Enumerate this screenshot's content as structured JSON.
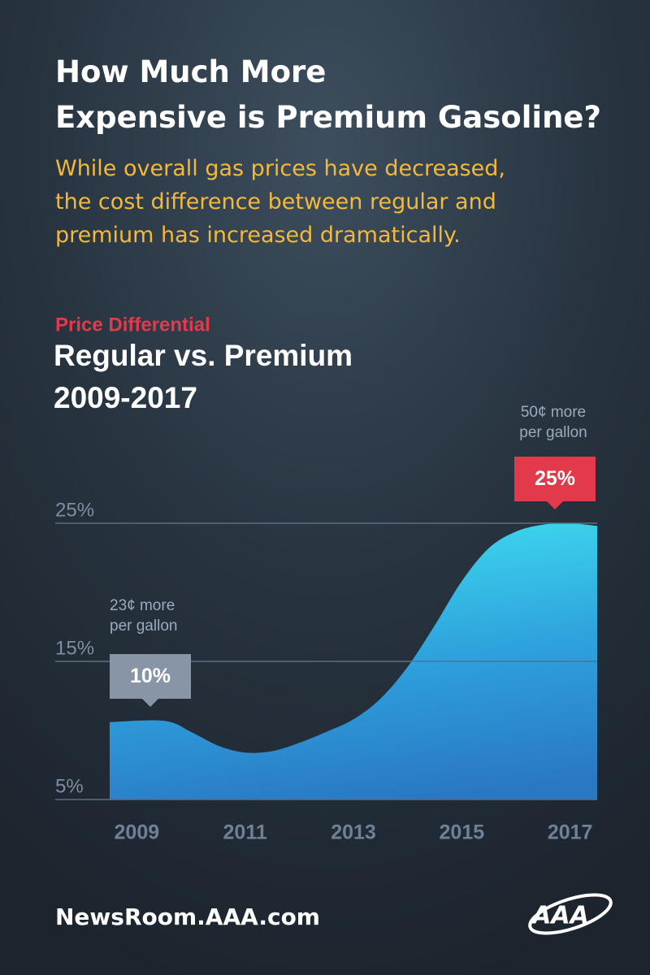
{
  "chart_data": {
    "type": "area",
    "title": "How Much More Expensive is Premium Gasoline?",
    "subtitle": "While overall gas prices have decreased, the cost difference between regular and premium has increased dramatically.",
    "kicker": "Price Differential",
    "chart_title": [
      "Regular vs. Premium",
      "2009-2017"
    ],
    "x": [
      2008.5,
      2009.5,
      2010,
      2010.5,
      2011,
      2011.5,
      2012,
      2012.5,
      2013,
      2013.5,
      2014,
      2014.5,
      2015,
      2015.5,
      2016,
      2016.5,
      2017,
      2017.5
    ],
    "series": [
      {
        "values": [
          10.6,
          10.7,
          9.9,
          8.9,
          8.4,
          8.5,
          9.1,
          9.9,
          10.8,
          12.3,
          14.6,
          17.6,
          20.8,
          23.2,
          24.4,
          24.9,
          25,
          24.8
        ],
        "color": "#2f8fd6"
      }
    ],
    "xlim": [
      2008.5,
      2017.5
    ],
    "xticks": [
      2009,
      2011,
      2013,
      2015,
      2017
    ],
    "ylim": [
      5,
      25
    ],
    "yticks": [
      {
        "value": 5,
        "label": "5%"
      },
      {
        "value": 15,
        "label": "15%"
      },
      {
        "value": 25,
        "label": "25%"
      }
    ],
    "grid": true,
    "annotations": [
      {
        "lines": [
          "23¢ more",
          "per gallon"
        ],
        "badge": "10%",
        "color": "#8795a6"
      },
      {
        "lines": [
          "50¢ more",
          "per gallon"
        ],
        "badge": "25%",
        "color": "#e23a4b"
      }
    ],
    "footer": "NewsRoom.AAA.com",
    "logo": "AAA"
  }
}
